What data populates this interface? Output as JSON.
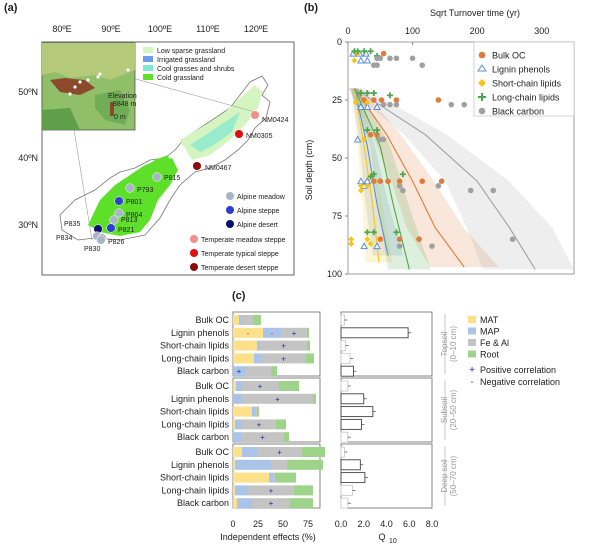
{
  "panels": {
    "a": "(a)",
    "b": "(b)",
    "c": "(c)"
  },
  "map": {
    "lon_ticks": [
      "80ºE",
      "90ºE",
      "100ºE",
      "110ºE",
      "120ºE"
    ],
    "lat_ticks": [
      "50ºN",
      "40ºN",
      "30ºN"
    ],
    "land_legend": [
      {
        "label": "Low sparse grassland",
        "color": "#d4f5c0"
      },
      {
        "label": "Irrigated grassland",
        "color": "#6a9ee8"
      },
      {
        "label": "Cool grasses and shrubs",
        "color": "#7fe8d0"
      },
      {
        "label": "Cold grassland",
        "color": "#5ee02a"
      }
    ],
    "inset": {
      "title": "Elevation",
      "max": "8848 m",
      "min": "0 m"
    },
    "site_legend": [
      {
        "label": "Alpine meadow",
        "color": "#a8b4c8"
      },
      {
        "label": "Alpine steppe",
        "color": "#2b3fd6"
      },
      {
        "label": "Alpine desert",
        "color": "#0c1070"
      },
      {
        "label": "Temperate meadow steppe",
        "color": "#f0908a"
      },
      {
        "label": "Temperate typical steppe",
        "color": "#e01010"
      },
      {
        "label": "Temperate desert steppe",
        "color": "#8a0c0c"
      }
    ],
    "sites": [
      {
        "name": "NM0424",
        "type": 3
      },
      {
        "name": "NM0305",
        "type": 4
      },
      {
        "name": "NM0467",
        "type": 5
      },
      {
        "name": "P815",
        "type": 0
      },
      {
        "name": "P793",
        "type": 0
      },
      {
        "name": "P801",
        "type": 1
      },
      {
        "name": "P804",
        "type": 0
      },
      {
        "name": "P813",
        "type": 0
      },
      {
        "name": "P821",
        "type": 1
      },
      {
        "name": "P835",
        "type": 2
      },
      {
        "name": "P834",
        "type": 0
      },
      {
        "name": "P826",
        "type": 0
      },
      {
        "name": "P830",
        "type": 0
      }
    ]
  },
  "chart_data": [
    {
      "type": "scatter",
      "title": "Sqrt Turnover time (yr)",
      "xlabel": "Sqrt Turnover time (yr)",
      "ylabel": "Soil depth (cm)",
      "xlim": [
        0,
        350
      ],
      "ylim": [
        0,
        100
      ],
      "x_ticks": [
        "0",
        "100",
        "200",
        "300"
      ],
      "y_ticks": [
        "0",
        "25",
        "50",
        "75",
        "100"
      ],
      "legend_position": "top-right",
      "series": [
        {
          "name": "Bulk OC",
          "color": "#e07b39",
          "marker": "circle",
          "points": [
            [
              55,
              5
            ],
            [
              140,
              25
            ],
            [
              25,
              25
            ],
            [
              40,
              25
            ],
            [
              52,
              25
            ],
            [
              75,
              25
            ],
            [
              35,
              40
            ],
            [
              45,
              40
            ],
            [
              40,
              60
            ],
            [
              50,
              60
            ],
            [
              62,
              60
            ],
            [
              80,
              60
            ],
            [
              115,
              60
            ],
            [
              145,
              60
            ],
            [
              50,
              85
            ],
            [
              80,
              85
            ],
            [
              110,
              85
            ]
          ],
          "curve": [
            [
              10,
              20
            ],
            [
              60,
              40
            ],
            [
              100,
              60
            ],
            [
              135,
              80
            ],
            [
              180,
              97
            ]
          ]
        },
        {
          "name": "Lignin phenols",
          "color": "#5b8fd6",
          "marker": "triangle",
          "points": [
            [
              8,
              5
            ],
            [
              18,
              5
            ],
            [
              28,
              5
            ],
            [
              20,
              8
            ],
            [
              30,
              8
            ],
            [
              20,
              28
            ],
            [
              30,
              28
            ],
            [
              45,
              28
            ],
            [
              15,
              42
            ],
            [
              20,
              60
            ],
            [
              30,
              60
            ],
            [
              25,
              62
            ],
            [
              25,
              88
            ],
            [
              45,
              88
            ]
          ],
          "curve": [
            [
              10,
              20
            ],
            [
              30,
              45
            ],
            [
              45,
              70
            ],
            [
              62,
              92
            ]
          ]
        },
        {
          "name": "Short-chain lipids",
          "color": "#f5c518",
          "marker": "diamond",
          "points": [
            [
              15,
              5
            ],
            [
              10,
              8
            ],
            [
              12,
              26
            ],
            [
              30,
              26
            ],
            [
              25,
              42
            ],
            [
              20,
              62
            ],
            [
              30,
              62
            ],
            [
              20,
              64
            ],
            [
              5,
              85
            ],
            [
              5,
              87
            ],
            [
              30,
              85
            ],
            [
              35,
              87
            ]
          ],
          "curve": [
            [
              10,
              20
            ],
            [
              25,
              45
            ],
            [
              38,
              70
            ],
            [
              48,
              95
            ]
          ]
        },
        {
          "name": "Long-chain lipids",
          "color": "#4aa84a",
          "marker": "plus",
          "points": [
            [
              10,
              4
            ],
            [
              15,
              4
            ],
            [
              25,
              4
            ],
            [
              35,
              4
            ],
            [
              45,
              6
            ],
            [
              20,
              22
            ],
            [
              30,
              22
            ],
            [
              40,
              22
            ],
            [
              65,
              23
            ],
            [
              30,
              38
            ],
            [
              45,
              38
            ],
            [
              35,
              58
            ],
            [
              40,
              57
            ],
            [
              85,
              57
            ],
            [
              30,
              82
            ],
            [
              40,
              82
            ],
            [
              75,
              82
            ]
          ],
          "curve": [
            [
              10,
              20
            ],
            [
              50,
              45
            ],
            [
              70,
              70
            ],
            [
              95,
              98
            ]
          ]
        },
        {
          "name": "Black carbon",
          "color": "#a0a0a0",
          "marker": "circle",
          "points": [
            [
              45,
              7
            ],
            [
              50,
              7
            ],
            [
              65,
              7
            ],
            [
              75,
              7
            ],
            [
              100,
              7
            ],
            [
              115,
              10
            ],
            [
              40,
              10
            ],
            [
              45,
              10
            ],
            [
              160,
              27
            ],
            [
              180,
              27
            ],
            [
              55,
              27
            ],
            [
              65,
              27
            ],
            [
              75,
              27
            ],
            [
              50,
              42
            ],
            [
              55,
              42
            ],
            [
              80,
              62
            ],
            [
              85,
              64
            ],
            [
              140,
              62
            ],
            [
              190,
              64
            ],
            [
              225,
              64
            ],
            [
              80,
              88
            ],
            [
              130,
              88
            ],
            [
              255,
              85
            ]
          ],
          "curve": [
            [
              10,
              20
            ],
            [
              120,
              40
            ],
            [
              200,
              60
            ],
            [
              250,
              80
            ],
            [
              290,
              98
            ]
          ]
        }
      ]
    },
    {
      "type": "bar",
      "subtype": "stacked-horizontal",
      "xlabel": "Independent effects (%)",
      "xlim": [
        0,
        100
      ],
      "x_ticks": [
        "0",
        "25",
        "50",
        "75"
      ],
      "stack_legend": [
        {
          "name": "MAT",
          "color": "#fde08a"
        },
        {
          "name": "MAP",
          "color": "#a9c4e8"
        },
        {
          "name": "Fe & Al",
          "color": "#c4c4c4"
        },
        {
          "name": "Root",
          "color": "#9ed38a"
        }
      ],
      "correlation_legend": [
        {
          "symbol": "+",
          "label": "Positive correlation",
          "color": "#2a2aa0"
        },
        {
          "symbol": "-",
          "label": "Negative correlation",
          "color": "#c0392b"
        }
      ],
      "groups": [
        {
          "name": "Topsoil",
          "depth": "(0–10 cm)",
          "rows": [
            {
              "label": "Bulk OC",
              "values": [
                6,
                2,
                12,
                8
              ],
              "signs": [
                "",
                "",
                "",
                ""
              ]
            },
            {
              "label": "Lignin phenols",
              "values": [
                30,
                18,
                26,
                2
              ],
              "signs": [
                "-",
                "-",
                "+",
                ""
              ]
            },
            {
              "label": "Short-chain lipids",
              "values": [
                24,
                3,
                47,
                3
              ],
              "signs": [
                "",
                "",
                "+",
                ""
              ]
            },
            {
              "label": "Long-chain lipids",
              "values": [
                21,
                7,
                45,
                8
              ],
              "signs": [
                "",
                "",
                "+",
                ""
              ]
            },
            {
              "label": "Black carbon",
              "values": [
                0,
                12,
                26,
                6
              ],
              "signs": [
                "",
                "+",
                "",
                ""
              ]
            }
          ]
        },
        {
          "name": "Subsoil",
          "depth": "(20–50 cm)",
          "rows": [
            {
              "label": "Bulk OC",
              "values": [
                3,
                5,
                38,
                20
              ],
              "signs": [
                "",
                "",
                "+",
                ""
              ]
            },
            {
              "label": "Lignin phenols",
              "values": [
                0,
                9,
                71,
                3
              ],
              "signs": [
                "",
                "",
                "+",
                ""
              ]
            },
            {
              "label": "Short-chain lipids",
              "values": [
                19,
                3,
                2,
                2
              ],
              "signs": [
                "",
                "",
                "",
                ""
              ]
            },
            {
              "label": "Long-chain lipids",
              "values": [
                2,
                7,
                34,
                10
              ],
              "signs": [
                "",
                "",
                "+",
                ""
              ]
            },
            {
              "label": "Black carbon",
              "values": [
                0,
                8,
                43,
                5
              ],
              "signs": [
                "",
                "",
                "+",
                ""
              ]
            }
          ]
        },
        {
          "name": "Deep soil",
          "depth": "(50–70 cm)",
          "rows": [
            {
              "label": "Bulk OC",
              "values": [
                9,
                15,
                45,
                23
              ],
              "signs": [
                "",
                "",
                "+",
                ""
              ]
            },
            {
              "label": "Lignin phenols",
              "values": [
                2,
                36,
                16,
                36
              ],
              "signs": [
                "",
                "",
                "",
                ""
              ]
            },
            {
              "label": "Short-chain lipids",
              "values": [
                36,
                4,
                2,
                21
              ],
              "signs": [
                "",
                "",
                "",
                ""
              ]
            },
            {
              "label": "Long-chain lipids",
              "values": [
                2,
                13,
                46,
                19
              ],
              "signs": [
                "",
                "",
                "+",
                ""
              ]
            },
            {
              "label": "Black carbon",
              "values": [
                4,
                15,
                38,
                23
              ],
              "signs": [
                "",
                "",
                "+",
                ""
              ]
            }
          ]
        }
      ]
    },
    {
      "type": "bar",
      "subtype": "horizontal",
      "xlabel": "Q10",
      "xlabel_main": "Q",
      "xlabel_sub": "10",
      "xlim": [
        0,
        8
      ],
      "x_ticks": [
        "0.0",
        "2.0",
        "4.0",
        "6.0",
        "8.0"
      ],
      "groups": [
        {
          "name": "Topsoil",
          "values": [
            0.3,
            5.9,
            0.4,
            0.8,
            1.1
          ],
          "significant": [
            false,
            true,
            false,
            false,
            true
          ]
        },
        {
          "name": "Subsoil",
          "values": [
            0.6,
            2.0,
            2.8,
            1.8,
            0.6
          ],
          "significant": [
            false,
            true,
            true,
            true,
            false
          ]
        },
        {
          "name": "Deep soil",
          "values": [
            0.3,
            1.7,
            2.1,
            1.0,
            0.6
          ],
          "significant": [
            false,
            true,
            true,
            false,
            false
          ]
        }
      ]
    }
  ]
}
